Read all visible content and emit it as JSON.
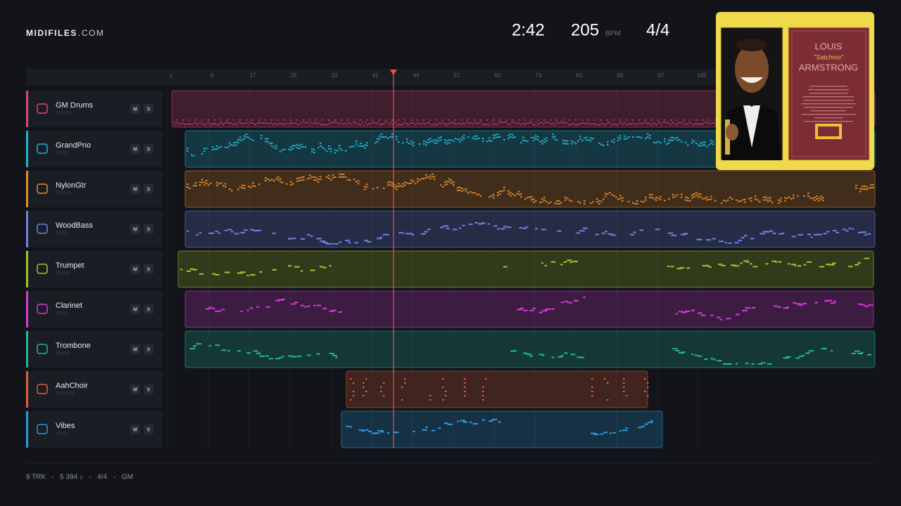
{
  "header": {
    "brand": "MIDIFILES",
    "brand_suffix": ".COM",
    "time": "2:42",
    "tempo": "205",
    "tempo_unit": "BPM",
    "meter": "4/4"
  },
  "ruler": [
    1,
    9,
    17,
    25,
    33,
    41,
    49,
    57,
    65,
    73,
    81,
    89,
    97,
    105
  ],
  "tracks": [
    {
      "name": "GM Drums",
      "category": "DRUMS",
      "color": "#e0457a"
    },
    {
      "name": "GrandPno",
      "category": "KEYS",
      "color": "#1fb4d4"
    },
    {
      "name": "NylonGtr",
      "category": "GUITAR",
      "color": "#e68a2a"
    },
    {
      "name": "WoodBass",
      "category": "BASS",
      "color": "#6f82e6"
    },
    {
      "name": "Trumpet",
      "category": "BRASS",
      "color": "#a3c42a"
    },
    {
      "name": "Clarinet",
      "category": "REED",
      "color": "#d63ad6"
    },
    {
      "name": "Trombone",
      "category": "BRASS",
      "color": "#1fb89a"
    },
    {
      "name": "AahChoir",
      "category": "STRINGS",
      "color": "#e0603a"
    },
    {
      "name": "Vibes",
      "category": "KEYS",
      "color": "#2a9ae0"
    }
  ],
  "track_buttons": {
    "mute": "M",
    "solo": "S"
  },
  "album": {
    "title_top": "LOUIS",
    "nickname": "\"Satchmo\"",
    "title_bottom": "ARMSTRONG"
  },
  "footer": {
    "tracks": "9 TRK",
    "notes": "5 394 ♪",
    "meter": "4/4",
    "standard": "GM"
  }
}
